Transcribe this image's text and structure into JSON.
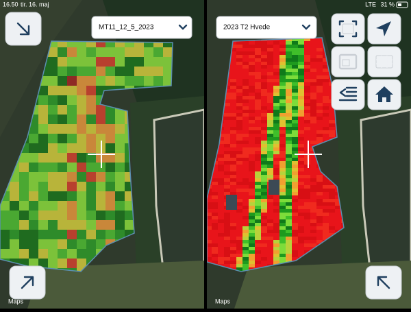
{
  "status_bar": {
    "time": "16.50",
    "date": "tir. 16. maj",
    "network": "LTE",
    "battery": "31 %"
  },
  "left_pane": {
    "layer_select": "MT11_12_5_2023",
    "attribution": "Maps"
  },
  "right_pane": {
    "layer_select": "2023 T2 Hvede",
    "attribution": "Maps"
  }
}
